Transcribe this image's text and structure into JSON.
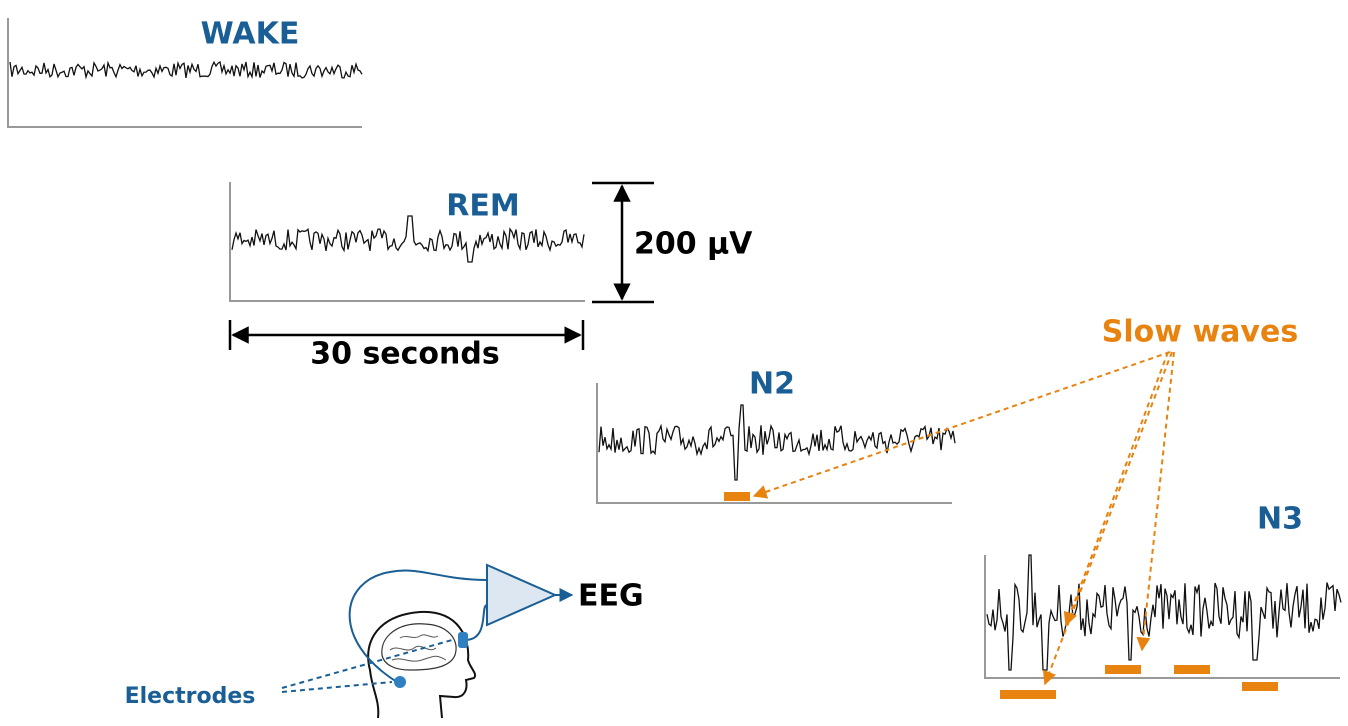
{
  "stages": [
    {
      "label": "WAKE"
    },
    {
      "label": "REM"
    },
    {
      "label": "N2"
    },
    {
      "label": "N3"
    }
  ],
  "scale": {
    "amplitude": "200 µV",
    "duration": "30 seconds"
  },
  "annotation": "Slow waves",
  "output": "EEG",
  "electrodes": "Electrodes"
}
